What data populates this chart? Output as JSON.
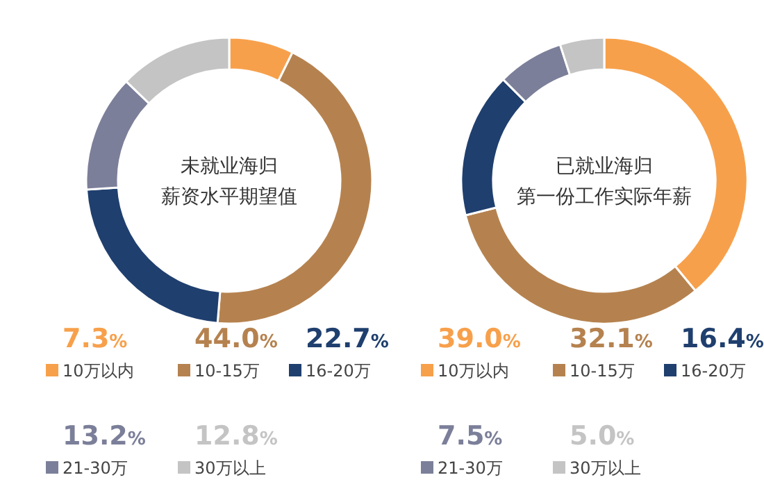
{
  "chart_data": [
    {
      "type": "donut",
      "title": "未就业海归",
      "subtitle": "薪资水平期望值",
      "legend": "bottom",
      "categories": [
        "10万以内",
        "10-15万",
        "16-20万",
        "21-30万",
        "30万以上"
      ],
      "values": [
        7.3,
        44.0,
        22.7,
        13.2,
        12.8
      ],
      "value_labels": [
        "7.3%",
        "44.0%",
        "22.7%",
        "13.2%",
        "12.8%"
      ],
      "colors": [
        "#f7a04b",
        "#b5824f",
        "#1f3f6e",
        "#7b7f99",
        "#c4c4c4"
      ]
    },
    {
      "type": "donut",
      "title": "已就业海归",
      "subtitle": "第一份工作实际年薪",
      "legend": "bottom",
      "categories": [
        "10万以内",
        "10-15万",
        "16-20万",
        "21-30万",
        "30万以上"
      ],
      "values": [
        39.0,
        32.1,
        16.4,
        7.5,
        5.0
      ],
      "value_labels": [
        "39.0%",
        "32.1%",
        "16.4%",
        "7.5%",
        "5.0%"
      ],
      "colors": [
        "#f7a04b",
        "#b5824f",
        "#1f3f6e",
        "#7b7f99",
        "#c4c4c4"
      ]
    }
  ]
}
